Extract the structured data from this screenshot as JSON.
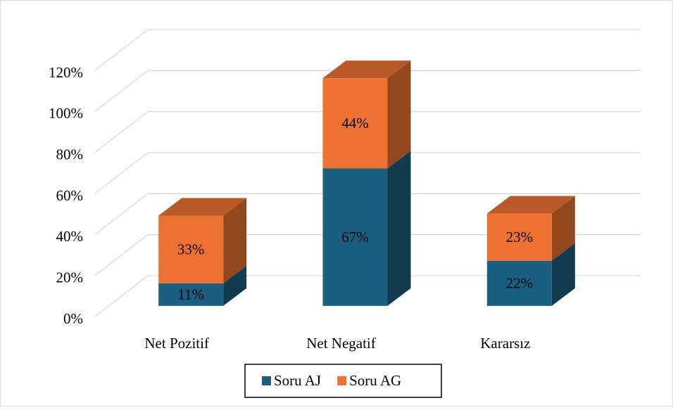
{
  "chart_data": {
    "type": "bar3d_stacked",
    "categories": [
      "Net Pozitif",
      "Net Negatif",
      "Kararsız"
    ],
    "series": [
      {
        "name": "Soru AJ",
        "color": "#1b5f80",
        "values": [
          11,
          67,
          22
        ],
        "value_labels": [
          "11%",
          "67%",
          "22%"
        ]
      },
      {
        "name": "Soru AG",
        "color": "#ed7232",
        "values": [
          33,
          44,
          23
        ],
        "value_labels": [
          "33%",
          "44%",
          "23%"
        ]
      }
    ],
    "ylim": [
      0,
      120
    ],
    "yticks": [
      {
        "value": 0,
        "label": "0%"
      },
      {
        "value": 20,
        "label": "20%"
      },
      {
        "value": 40,
        "label": "40%"
      },
      {
        "value": 60,
        "label": "60%"
      },
      {
        "value": 80,
        "label": "80%"
      },
      {
        "value": 100,
        "label": "100%"
      },
      {
        "value": 120,
        "label": "120%"
      }
    ],
    "grid": true,
    "legend": "bottom"
  }
}
